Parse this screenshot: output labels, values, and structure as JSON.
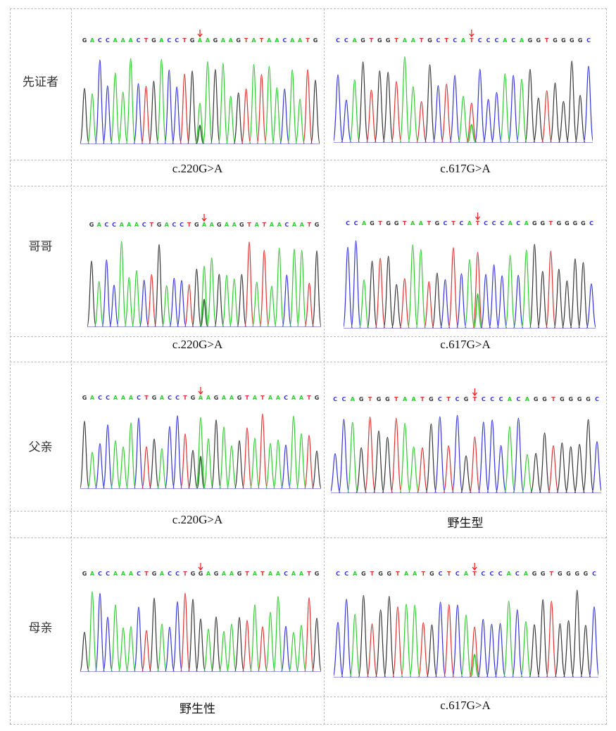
{
  "colors": {
    "A": "#2ecc2e",
    "C": "#3333dd",
    "G": "#333333",
    "T": "#e03030",
    "arrow": "#ee2222"
  },
  "rows": [
    {
      "label": "先证者",
      "panels": [
        {
          "sequence": "GACCAAACTGACCTGAAGAAGTATAACAATG",
          "marker_index": 15,
          "het_index": 15,
          "caption": "c.220G>A"
        },
        {
          "sequence": "CCAGTGGTAATGCTCATCCCACAGGTGGGGC",
          "marker_index": 16,
          "het_index": 16,
          "caption": "c.617G>A"
        }
      ]
    },
    {
      "label": "哥哥",
      "panels": [
        {
          "sequence": "GACCAAACTGACCTGAAGAAGTATAACAATG",
          "marker_index": 15,
          "het_index": 15,
          "caption": "c.220G>A"
        },
        {
          "sequence": "CCAGTGGTAATGCTCATCCCACAGGTGGGGC",
          "marker_index": 16,
          "het_index": 16,
          "caption": "c.617G>A"
        }
      ]
    },
    {
      "label": "父亲",
      "panels": [
        {
          "sequence": "GACCAAACTGACCTGAAGAAGTATAACAATG",
          "marker_index": 15,
          "het_index": 15,
          "caption": "c.220G>A"
        },
        {
          "sequence": "CCAGTGGTAATGCTCGTCCCACAGGTGGGGC",
          "marker_index": 16,
          "het_index": -1,
          "caption": "野生型"
        }
      ]
    },
    {
      "label": "母亲",
      "panels": [
        {
          "sequence": "GACCAAACTGACCTGGAGAAGTATAACAATG",
          "marker_index": 15,
          "het_index": -1,
          "caption": "野生性"
        },
        {
          "sequence": "CCAGTGGTAATGCTCATCCCACAGGTGGGGC",
          "marker_index": 16,
          "het_index": 16,
          "caption": "c.617G>A"
        }
      ]
    }
  ]
}
